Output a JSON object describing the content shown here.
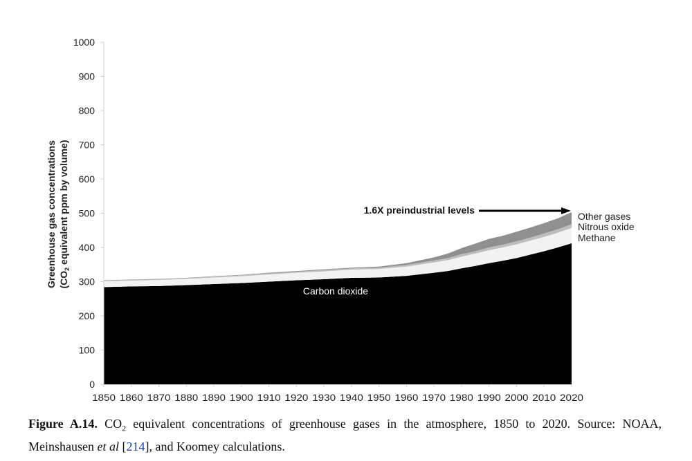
{
  "chart_data": {
    "type": "area",
    "stacked": true,
    "title": "",
    "xlabel": "",
    "ylabel": "Greenhouse gas concentrations (CO2 equivalent ppm by volume)",
    "ylabel_line1": "Greenhouse gas concentrations",
    "ylabel_line2_pre": "(CO",
    "ylabel_line2_sub": "2",
    "ylabel_line2_post": " equivalent ppm by volume)",
    "xlim": [
      1850,
      2020
    ],
    "ylim": [
      0,
      1000
    ],
    "yticks": [
      "0",
      "100",
      "200",
      "300",
      "400",
      "500",
      "600",
      "700",
      "800",
      "900",
      "1000"
    ],
    "xticks": [
      "1850",
      "1860",
      "1870",
      "1880",
      "1890",
      "1900",
      "1910",
      "1920",
      "1930",
      "1940",
      "1950",
      "1960",
      "1970",
      "1980",
      "1990",
      "2000",
      "2010",
      "2020"
    ],
    "grid": false,
    "x": [
      1850,
      1860,
      1870,
      1880,
      1890,
      1900,
      1910,
      1920,
      1930,
      1940,
      1950,
      1960,
      1970,
      1975,
      1980,
      1985,
      1990,
      1995,
      2000,
      2005,
      2010,
      2015,
      2020
    ],
    "series": [
      {
        "name": "Carbon dioxide",
        "color": "#000000",
        "values": [
          284,
          286,
          287,
          290,
          293,
          296,
          300,
          304,
          307,
          311,
          312,
          317,
          326,
          331,
          339,
          346,
          354,
          361,
          369,
          379,
          389,
          400,
          412
        ]
      },
      {
        "name": "Methane",
        "color": "#f2f2f2",
        "values": [
          17,
          17,
          18,
          18,
          19,
          20,
          21,
          22,
          23,
          24,
          25,
          27,
          30,
          32,
          34,
          36,
          38,
          39,
          40,
          41,
          42,
          43,
          45
        ]
      },
      {
        "name": "Nitrous oxide",
        "color": "#bdbdbd",
        "values": [
          2,
          2,
          2,
          2,
          3,
          3,
          3,
          3,
          4,
          4,
          4,
          5,
          6,
          6,
          7,
          7,
          8,
          8,
          9,
          9,
          10,
          10,
          11
        ]
      },
      {
        "name": "Other gases",
        "color": "#8f8f8f",
        "values": [
          1,
          1,
          1,
          1,
          1,
          1,
          2,
          2,
          2,
          2,
          3,
          5,
          9,
          13,
          18,
          22,
          25,
          26,
          28,
          29,
          30,
          32,
          35
        ]
      }
    ],
    "legend_position": "right, at end of series",
    "annotations": [
      {
        "text": "1.6X preindustrial levels",
        "arrow_to": [
          2020,
          503
        ]
      },
      {
        "text": "Carbon dioxide",
        "at": [
          1950,
          270
        ]
      }
    ]
  },
  "legend": {
    "other": "Other gases",
    "nitrous": "Nitrous oxide",
    "methane": "Methane"
  },
  "annotation": {
    "arrow_text": "1.6X preindustrial levels",
    "co2_label": "Carbon dioxide"
  },
  "caption": {
    "figure_label": "Figure A.14.",
    "text_pre": " CO",
    "text_sub": "2",
    "text_mid": " equivalent concentrations of greenhouse gases in the atmosphere, 1850 to 2020. Source: NOAA, Meinshausen ",
    "italic": "et al",
    "text_ref_open": " [",
    "ref": "214",
    "text_post": "], and Koomey calculations."
  }
}
